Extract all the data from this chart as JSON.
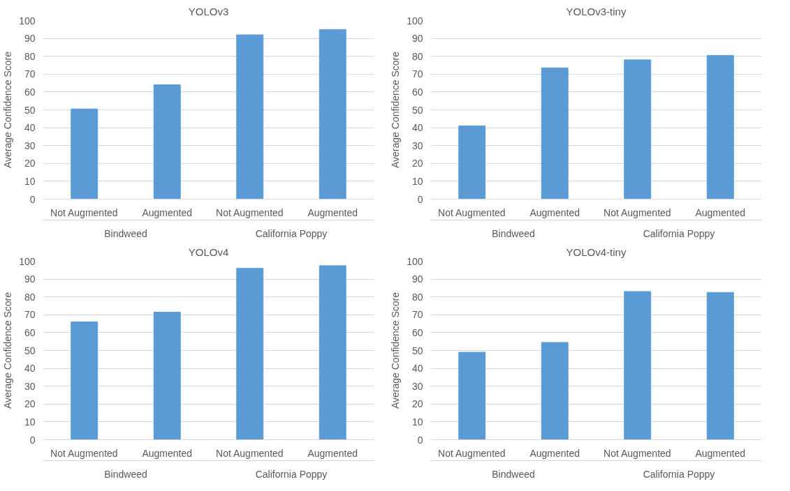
{
  "chart_data": [
    {
      "type": "bar",
      "title": "YOLOv3",
      "ylabel": "Average Confidence Score",
      "categories": [
        "Not Augmented",
        "Augmented",
        "Not Augmented",
        "Augmented"
      ],
      "values": [
        50.5,
        64,
        92,
        95
      ],
      "color": "#5b9bd5",
      "ylim": [
        0,
        100
      ],
      "yticks": [
        0,
        10,
        20,
        30,
        40,
        50,
        60,
        70,
        80,
        90,
        100
      ],
      "grid": "y",
      "annotations": [
        "Bindweed",
        "California Poppy"
      ]
    },
    {
      "type": "bar",
      "title": "YOLOv3-tiny",
      "ylabel": "Average Confidence Score",
      "categories": [
        "Not Augmented",
        "Augmented",
        "Not Augmented",
        "Augmented"
      ],
      "values": [
        41,
        73.5,
        78,
        80.5
      ],
      "color": "#5b9bd5",
      "ylim": [
        0,
        100
      ],
      "yticks": [
        0,
        10,
        20,
        30,
        40,
        50,
        60,
        70,
        80,
        90,
        100
      ],
      "grid": "y",
      "annotations": [
        "Bindweed",
        "California Poppy"
      ]
    },
    {
      "type": "bar",
      "title": "YOLOv4",
      "ylabel": "Average Confidence Score",
      "categories": [
        "Not Augmented",
        "Augmented",
        "Not Augmented",
        "Augmented"
      ],
      "values": [
        66,
        71.5,
        96,
        97.5
      ],
      "color": "#5b9bd5",
      "ylim": [
        0,
        100
      ],
      "yticks": [
        0,
        10,
        20,
        30,
        40,
        50,
        60,
        70,
        80,
        90,
        100
      ],
      "grid": "y",
      "annotations": [
        "Bindweed",
        "California Poppy"
      ]
    },
    {
      "type": "bar",
      "title": "YOLOv4-tiny",
      "ylabel": "Average Confidence Score",
      "categories": [
        "Not Augmented",
        "Augmented",
        "Not Augmented",
        "Augmented"
      ],
      "values": [
        49,
        54.5,
        83,
        82.5
      ],
      "color": "#5b9bd5",
      "ylim": [
        0,
        100
      ],
      "yticks": [
        0,
        10,
        20,
        30,
        40,
        50,
        60,
        70,
        80,
        90,
        100
      ],
      "grid": "y",
      "annotations": [
        "Bindweed",
        "California Poppy"
      ]
    }
  ]
}
